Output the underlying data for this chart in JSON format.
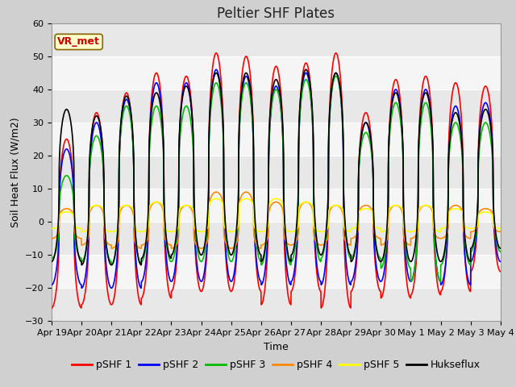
{
  "title": "Peltier SHF Plates",
  "xlabel": "Time",
  "ylabel": "Soil Heat Flux (W/m2)",
  "ylim": [
    -30,
    60
  ],
  "yticks": [
    -30,
    -20,
    -10,
    0,
    10,
    20,
    30,
    40,
    50,
    60
  ],
  "xtick_labels": [
    "Apr 19",
    "Apr 20",
    "Apr 21",
    "Apr 22",
    "Apr 23",
    "Apr 24",
    "Apr 25",
    "Apr 26",
    "Apr 27",
    "Apr 28",
    "Apr 29",
    "Apr 30",
    "May 1",
    "May 2",
    "May 3",
    "May 4"
  ],
  "annotation_text": "VR_met",
  "annotation_color": "#cc0000",
  "annotation_bg": "#ffffcc",
  "annotation_border": "#886600",
  "series_colors": {
    "pSHF 1": "#ff0000",
    "pSHF 2": "#0000ff",
    "pSHF 3": "#00bb00",
    "pSHF 4": "#ff8800",
    "pSHF 5": "#ffff00",
    "Hukseflux": "#000000"
  },
  "bg_color": "#d0d0d0",
  "plot_bg_light": "#f5f5f5",
  "plot_bg_dark": "#e8e8e8",
  "grid_color": "#ffffff",
  "title_fontsize": 12,
  "label_fontsize": 9,
  "tick_fontsize": 8,
  "legend_fontsize": 9,
  "n_days": 15,
  "pSHF1_peaks": [
    25,
    33,
    39,
    45,
    44,
    51,
    50,
    47,
    48,
    51,
    33,
    43,
    44,
    42,
    41
  ],
  "pSHF1_trough": [
    -26,
    -25,
    -25,
    -23,
    -21,
    -21,
    -21,
    -25,
    -21,
    -26,
    -21,
    -23,
    -22,
    -21,
    -15
  ],
  "pSHF2_peaks": [
    22,
    30,
    37,
    42,
    42,
    46,
    44,
    41,
    45,
    45,
    30,
    40,
    40,
    35,
    36
  ],
  "pSHF2_trough": [
    -19,
    -20,
    -20,
    -18,
    -18,
    -18,
    -18,
    -19,
    -18,
    -19,
    -18,
    -18,
    -18,
    -19,
    -12
  ],
  "pSHF3_peaks": [
    14,
    26,
    35,
    35,
    35,
    42,
    42,
    40,
    43,
    44,
    27,
    36,
    36,
    30,
    30
  ],
  "pSHF3_trough": [
    -11,
    -12,
    -13,
    -12,
    -12,
    -12,
    -12,
    -13,
    -12,
    -11,
    -11,
    -14,
    -18,
    -13,
    -9
  ],
  "pSHF4_peaks": [
    4,
    5,
    5,
    6,
    5,
    9,
    9,
    6,
    6,
    5,
    5,
    5,
    5,
    5,
    4
  ],
  "pSHF4_trough": [
    -5,
    -7,
    -8,
    -7,
    -8,
    -8,
    -8,
    -7,
    -7,
    -7,
    -5,
    -7,
    -5,
    -5,
    -3
  ],
  "pSHF5_peaks": [
    3,
    5,
    5,
    6,
    5,
    7,
    7,
    7,
    6,
    5,
    4,
    5,
    5,
    4,
    3
  ],
  "pSHF5_trough": [
    -2,
    -3,
    -3,
    -3,
    -3,
    -3,
    -3,
    -3,
    -3,
    -3,
    -2,
    -3,
    -3,
    -2,
    -2
  ],
  "hux_peaks": [
    34,
    32,
    38,
    39,
    41,
    45,
    45,
    43,
    46,
    45,
    30,
    39,
    39,
    33,
    34
  ],
  "hux_trough": [
    -12,
    -13,
    -13,
    -11,
    -10,
    -10,
    -10,
    -12,
    -10,
    -10,
    -12,
    -12,
    -12,
    -12,
    -8
  ]
}
